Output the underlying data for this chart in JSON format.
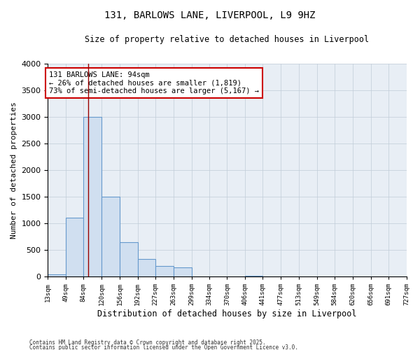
{
  "title1": "131, BARLOWS LANE, LIVERPOOL, L9 9HZ",
  "title2": "Size of property relative to detached houses in Liverpool",
  "xlabel": "Distribution of detached houses by size in Liverpool",
  "ylabel": "Number of detached properties",
  "annotation_line1": "131 BARLOWS LANE: 94sqm",
  "annotation_line2": "← 26% of detached houses are smaller (1,819)",
  "annotation_line3": "73% of semi-detached houses are larger (5,167) →",
  "property_size": 94,
  "bin_edges": [
    13,
    49,
    84,
    120,
    156,
    192,
    227,
    263,
    299,
    334,
    370,
    406,
    441,
    477,
    513,
    549,
    584,
    620,
    656,
    691,
    727
  ],
  "bin_labels": [
    "13sqm",
    "49sqm",
    "84sqm",
    "120sqm",
    "156sqm",
    "192sqm",
    "227sqm",
    "263sqm",
    "299sqm",
    "334sqm",
    "370sqm",
    "406sqm",
    "441sqm",
    "477sqm",
    "513sqm",
    "549sqm",
    "584sqm",
    "620sqm",
    "656sqm",
    "691sqm",
    "727sqm"
  ],
  "bar_heights": [
    40,
    1100,
    3000,
    1500,
    650,
    330,
    200,
    175,
    5,
    5,
    5,
    20,
    5,
    5,
    5,
    5,
    5,
    5,
    5,
    5,
    5
  ],
  "bar_color": "#d0dff0",
  "bar_edge_color": "#6699cc",
  "red_line_x": 94,
  "ylim": [
    0,
    4000
  ],
  "grid_color": "#c0ccd8",
  "annotation_box_color": "#cc0000",
  "background_color": "#e8eef5",
  "footer_line1": "Contains HM Land Registry data © Crown copyright and database right 2025.",
  "footer_line2": "Contains public sector information licensed under the Open Government Licence v3.0."
}
